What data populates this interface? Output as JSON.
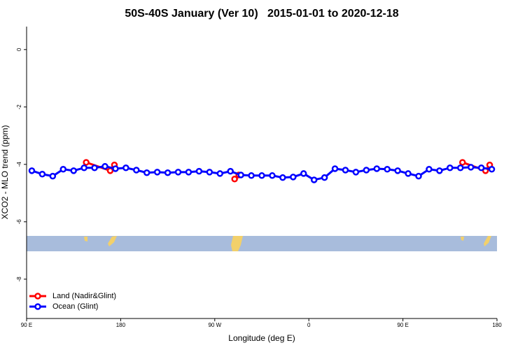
{
  "chart_data": {
    "type": "line",
    "title": "50S-40S January (Ver 10)   2015-01-01 to 2020-12-18",
    "x_label": "Longitude (deg E)",
    "y_label": "XCO2 - MLO trend (ppm)",
    "xlim": [
      90,
      540
    ],
    "xticks": [
      {
        "value": 90,
        "label": "90 E"
      },
      {
        "value": 180,
        "label": "180"
      },
      {
        "value": 270,
        "label": "90 W"
      },
      {
        "value": 360,
        "label": "0"
      },
      {
        "value": 450,
        "label": "90 E"
      },
      {
        "value": 540,
        "label": "180"
      }
    ],
    "ylim": [
      -9.37,
      0.8
    ],
    "yticks": [
      0,
      -2,
      -4,
      -6,
      -8
    ],
    "legend": "bottom-left",
    "series": [
      {
        "name": "Land (Nadir&Glint)",
        "color": "#ff0000",
        "x": [
          147,
          170,
          174,
          289,
          293,
          507,
          529,
          533
        ],
        "values": [
          -3.93,
          -4.22,
          -4.02,
          -4.51,
          -4.37,
          -3.93,
          -4.22,
          -4.02
        ]
      },
      {
        "name": "Ocean (Glint)",
        "color": "#0000ff",
        "x": [
          95,
          105,
          115,
          125,
          135,
          145,
          155,
          165,
          175,
          185,
          195,
          205,
          215,
          225,
          235,
          245,
          255,
          265,
          275,
          285,
          295,
          305,
          315,
          325,
          335,
          345,
          355,
          365,
          375,
          385,
          395,
          405,
          415,
          425,
          435,
          445,
          455,
          465,
          475,
          485,
          495,
          505,
          515,
          525,
          535
        ],
        "values": [
          -4.22,
          -4.34,
          -4.41,
          -4.17,
          -4.22,
          -4.12,
          -4.12,
          -4.07,
          -4.15,
          -4.12,
          -4.2,
          -4.29,
          -4.27,
          -4.29,
          -4.27,
          -4.27,
          -4.24,
          -4.27,
          -4.32,
          -4.24,
          -4.37,
          -4.39,
          -4.39,
          -4.39,
          -4.46,
          -4.44,
          -4.32,
          -4.54,
          -4.46,
          -4.15,
          -4.2,
          -4.27,
          -4.2,
          -4.15,
          -4.17,
          -4.22,
          -4.32,
          -4.41,
          -4.17,
          -4.22,
          -4.12,
          -4.12,
          -4.1,
          -4.12,
          -4.17
        ]
      }
    ]
  }
}
